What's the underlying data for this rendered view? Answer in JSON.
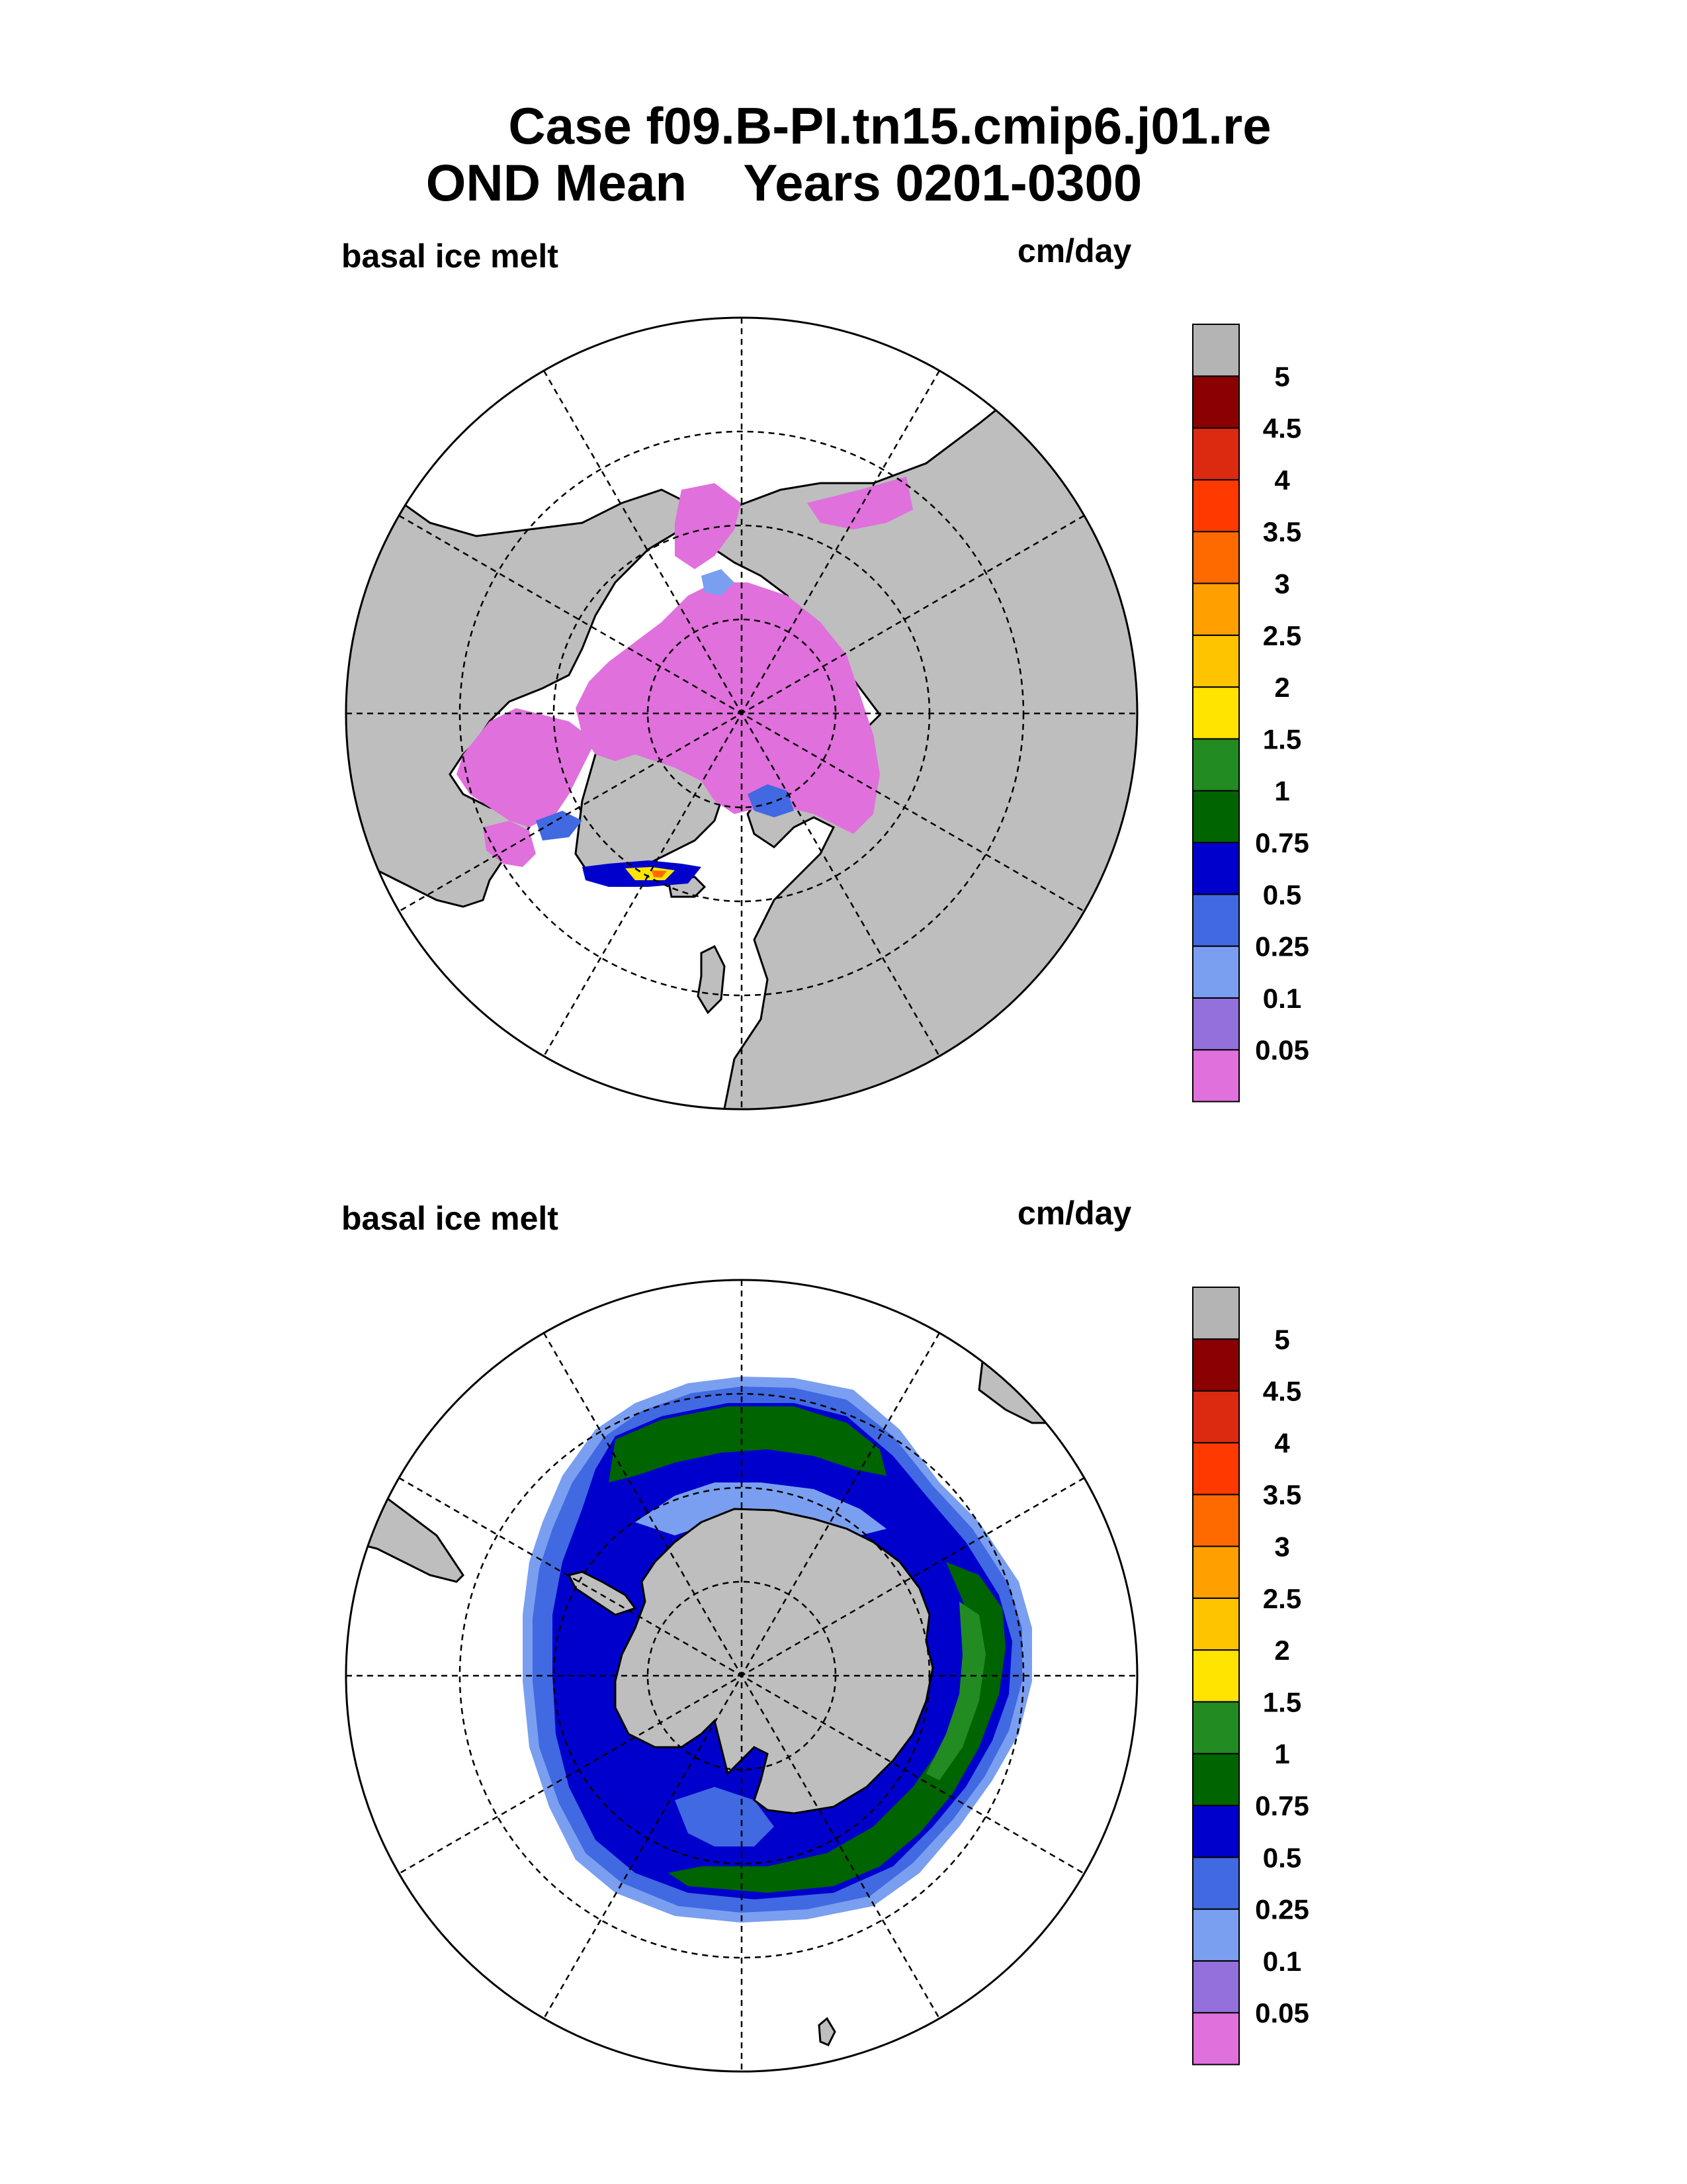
{
  "title": {
    "line1": "Case f09.B-PI.tn15.cmip6.j01.re",
    "line2": "OND Mean    Years 0201-0300"
  },
  "panels": [
    {
      "id": "north",
      "variable": "basal ice melt",
      "units": "cm/day",
      "hemisphere": "Arctic"
    },
    {
      "id": "south",
      "variable": "basal ice melt",
      "units": "cm/day",
      "hemisphere": "Antarctic"
    }
  ],
  "colorbar": {
    "labels": [
      "0.05",
      "0.1",
      "0.25",
      "0.5",
      "0.75",
      "1",
      "1.5",
      "2",
      "2.5",
      "3",
      "3.5",
      "4",
      "4.5",
      "5"
    ],
    "colors": [
      "#e070dc",
      "#9370db",
      "#7a9ff0",
      "#4169e1",
      "#0000cd",
      "#006400",
      "#228b22",
      "#ffe400",
      "#ffc400",
      "#ffa000",
      "#ff6a00",
      "#ff3a00",
      "#dc2a10",
      "#8b0000",
      "#b4b4b4"
    ]
  },
  "colors": {
    "land": "#bebebe",
    "ocean": "#ffffff"
  }
}
